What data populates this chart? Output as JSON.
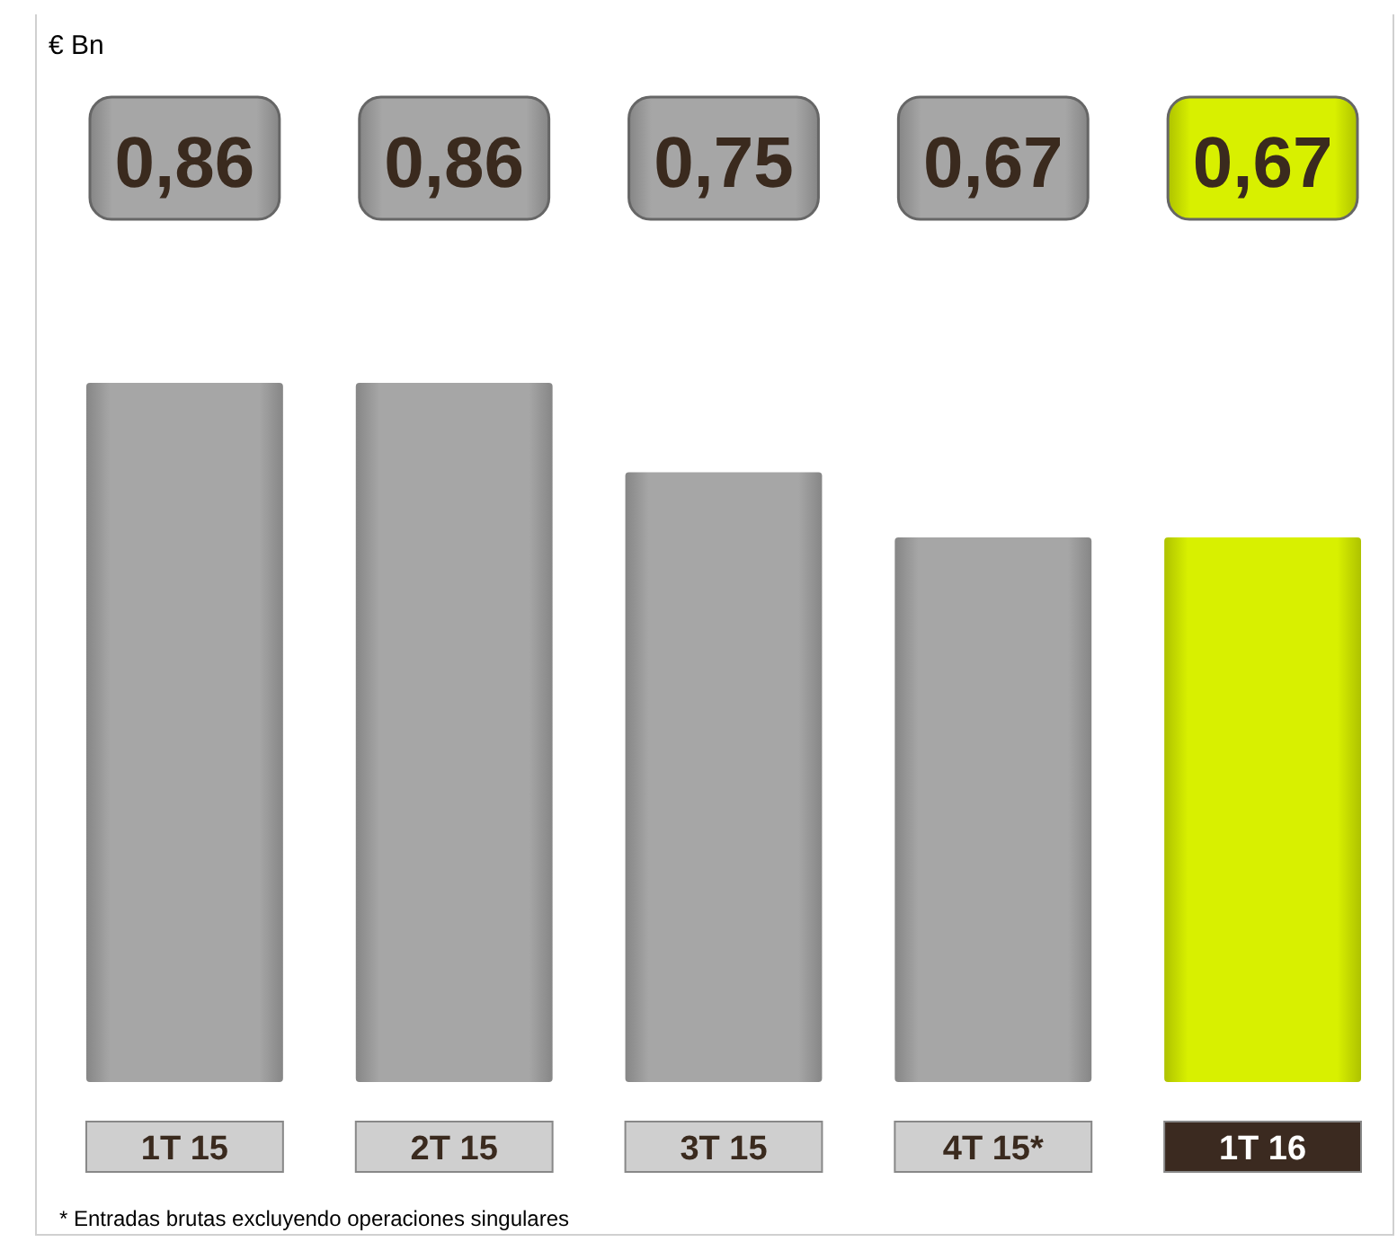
{
  "chart_data": {
    "type": "bar",
    "categories": [
      "1T 15",
      "2T 15",
      "3T 15",
      "4T 15*",
      "1T 16"
    ],
    "values": [
      0.86,
      0.86,
      0.75,
      0.67,
      0.67
    ],
    "colors": [
      "#a6a6a6",
      "#a6a6a6",
      "#a6a6a6",
      "#a6a6a6",
      "#d8f000"
    ],
    "value_labels": [
      "0,86",
      "0,86",
      "0,75",
      "0,67",
      "0,67"
    ],
    "annotations": [
      "€ Bn",
      "* Entradas brutas excluyendo operaciones singulares"
    ]
  }
}
